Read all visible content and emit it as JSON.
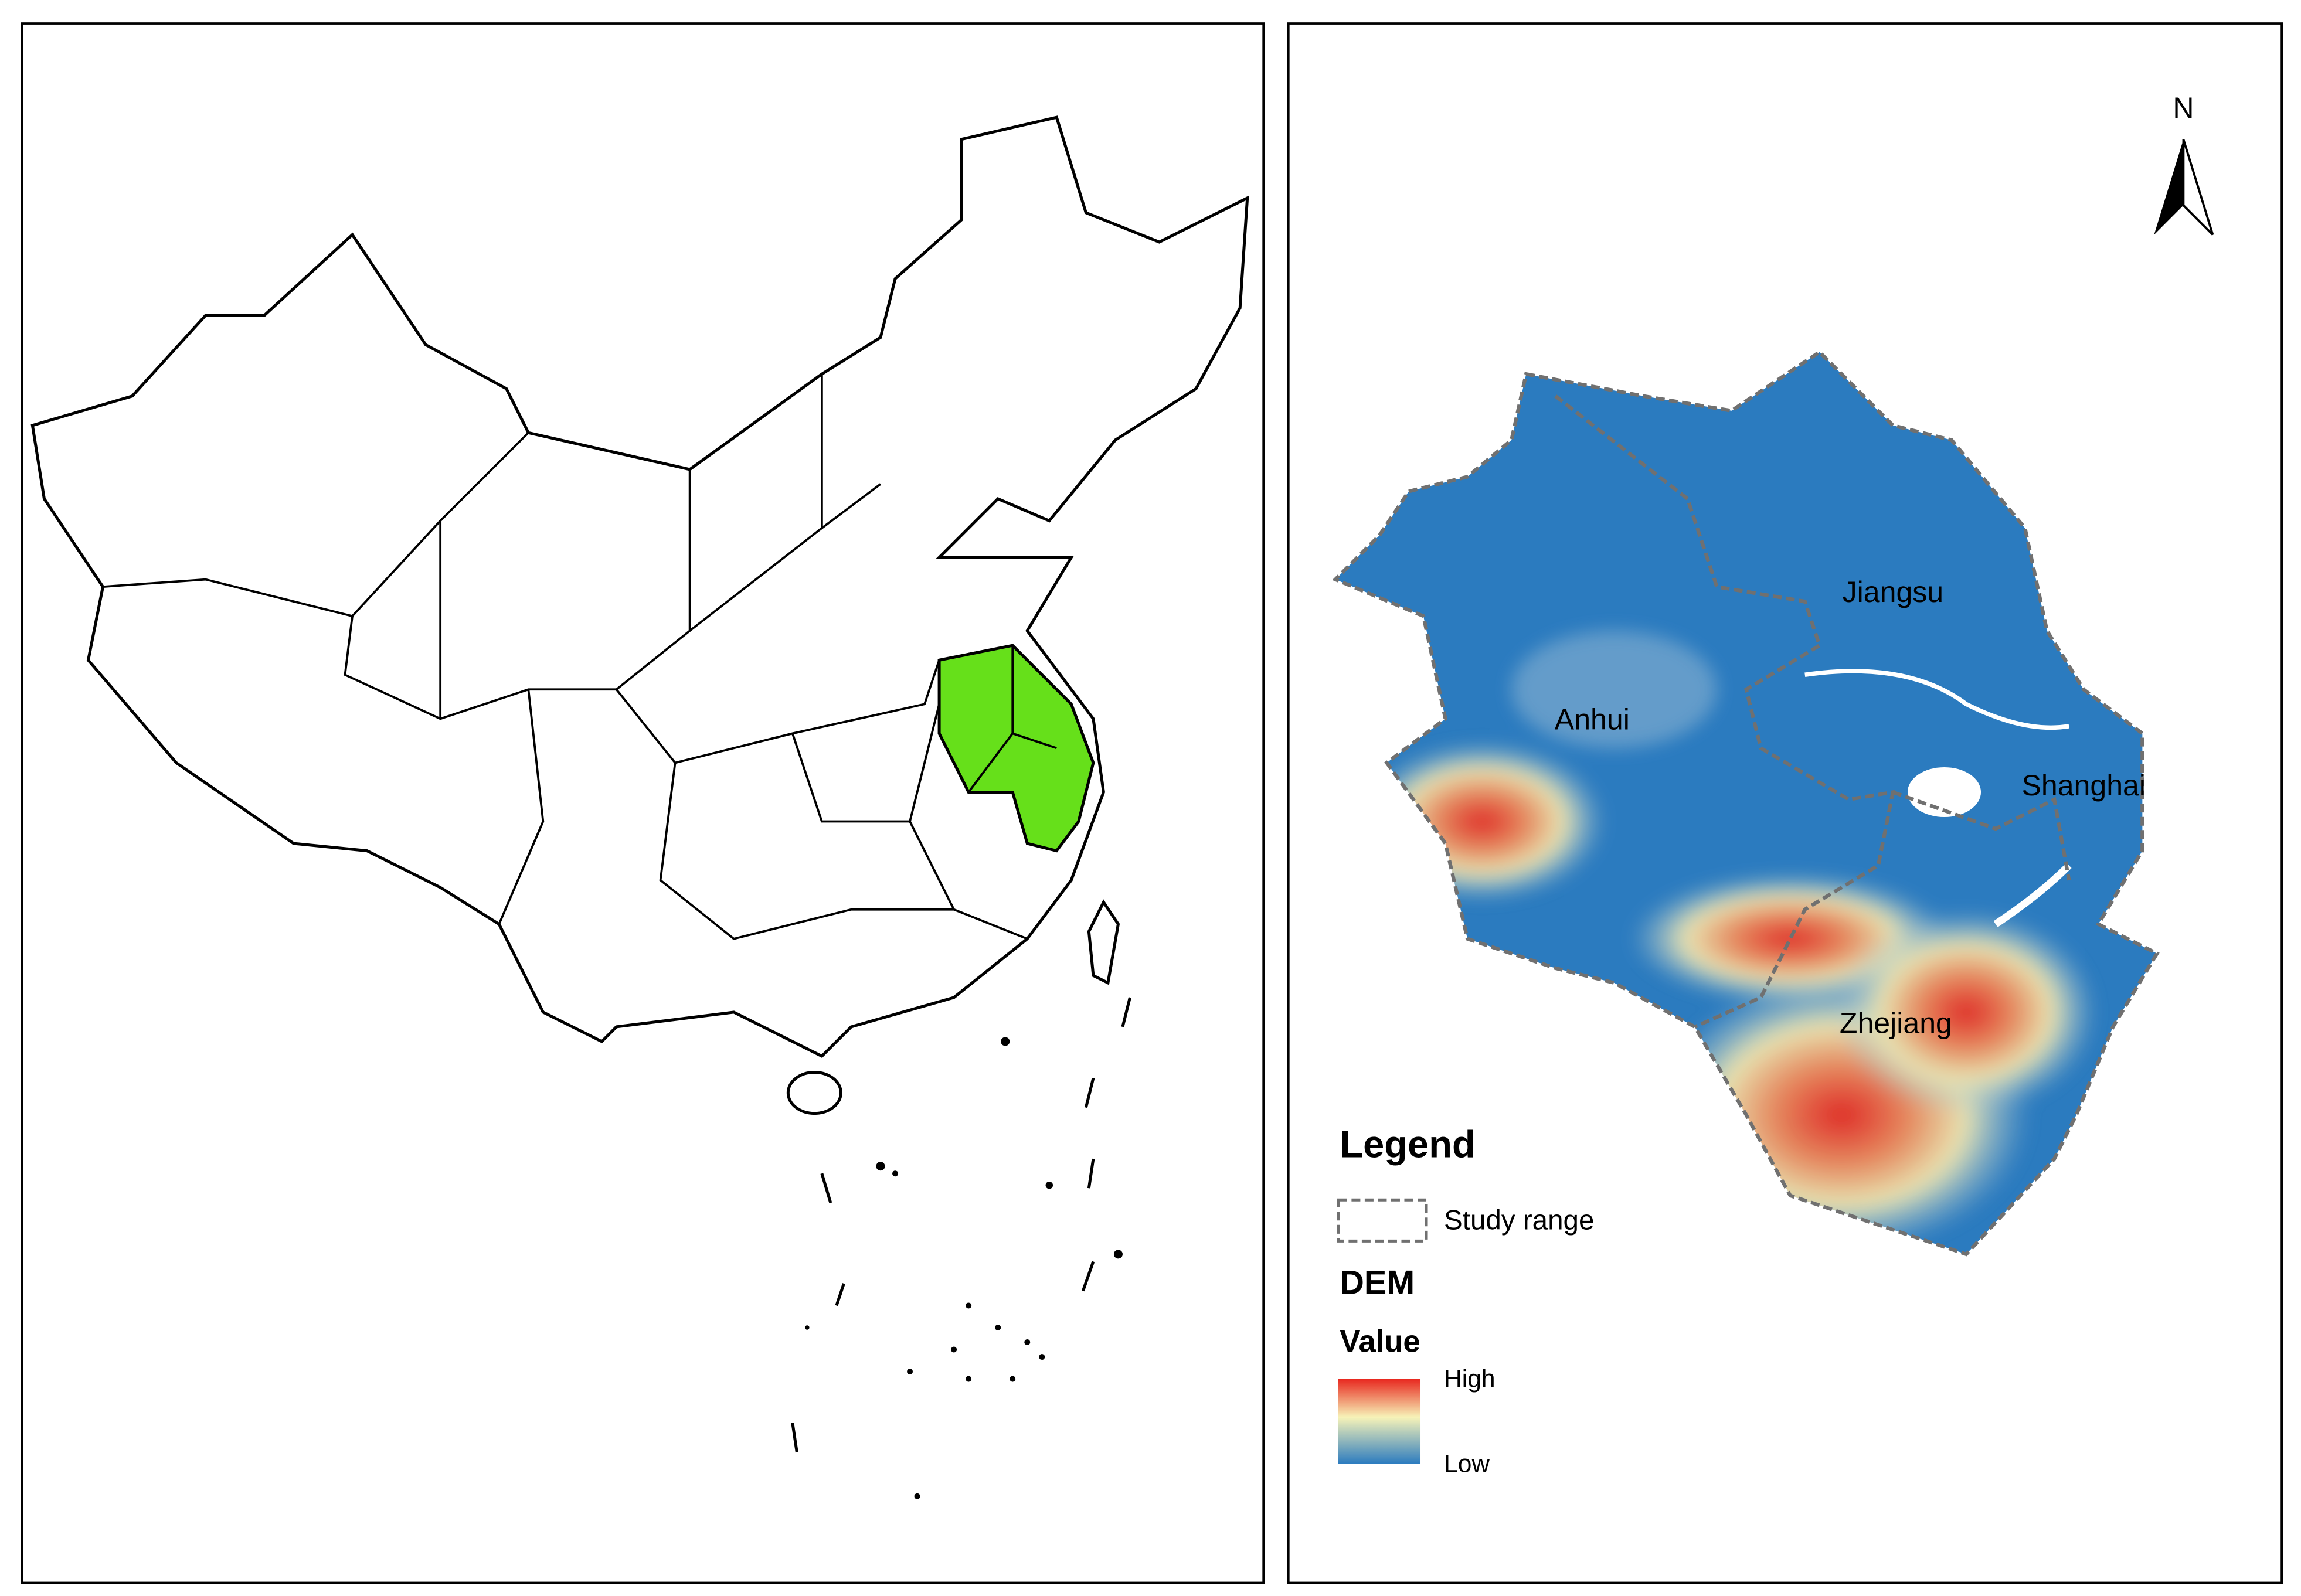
{
  "north_arrow": {
    "label": "N"
  },
  "map_labels": {
    "jiangsu": "Jiangsu",
    "anhui": "Anhui",
    "shanghai": "Shanghai",
    "zhejiang": "Zhejiang"
  },
  "legend": {
    "title": "Legend",
    "study_range": "Study range",
    "dem": "DEM",
    "value": "Value",
    "high": "High",
    "low": "Low"
  }
}
